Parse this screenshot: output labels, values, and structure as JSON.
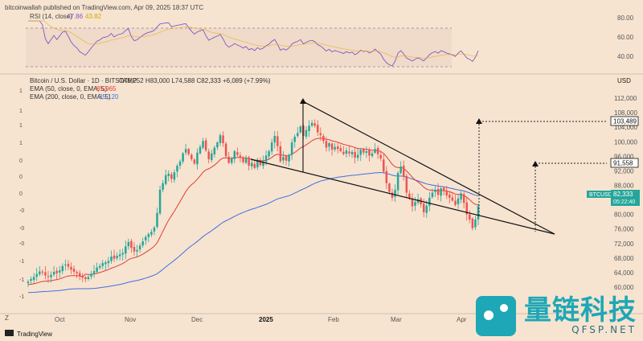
{
  "header": {
    "publisher": "bitcoinwallah published on TradingView.com, Apr 09, 2025 18:37 UTC"
  },
  "rsi_panel": {
    "legend_label": "RSI (14, close)",
    "legend_value1": "47.86",
    "legend_value2": "43.82",
    "y_ticks": [
      "80.00",
      "60.00",
      "40.00"
    ]
  },
  "price_panel": {
    "symbol_line": "Bitcoin / U.S. Dollar · 1D · BITSTAMP",
    "ohlc": "O76,252  H83,000  L74,588  C82,333  +6,089 (+7.99%)",
    "ema50_label": "EMA (50, close, 0, EMA, 5)",
    "ema50_value": "85,965",
    "ema200_label": "EMA (200, close, 0, EMA, 5)",
    "ema200_value": "85,120",
    "currency": "USD",
    "y_ticks": [
      "112,000",
      "108,000",
      "104,000",
      "100,000",
      "96,000",
      "92,000",
      "88,000",
      "84,000",
      "80,000",
      "76,000",
      "72,000",
      "68,000",
      "64,000",
      "60,000"
    ],
    "price_tags": {
      "target_high": "103,489",
      "target_low": "91,558"
    },
    "btc_tag": {
      "label": "BTCUSD",
      "price": "82,333",
      "countdown": "05:22:40"
    }
  },
  "x_axis": {
    "labels": [
      "Oct",
      "Nov",
      "Dec",
      "2025",
      "Feb",
      "Mar",
      "Apr"
    ]
  },
  "footer": {
    "brand": "TradingView"
  },
  "watermark": {
    "title": "量链科技",
    "url": "QFSP.NET"
  },
  "colors": {
    "bull": "#26a69a",
    "bear": "#ef5350",
    "ema50": "#e53935",
    "ema200": "#3f6fe0",
    "rsi": "#7e57c2",
    "bg": "#f6e4d0"
  },
  "chart_data": {
    "type": "candlestick",
    "title": "Bitcoin / U.S. Dollar · 1D · BITSTAMP",
    "ylabel": "USD",
    "ylim": [
      58000,
      114000
    ],
    "x": [
      "Oct",
      "Nov",
      "Dec",
      "2025",
      "Feb",
      "Mar",
      "Apr"
    ],
    "close_series": [
      61500,
      62200,
      62800,
      63600,
      64300,
      64000,
      63200,
      62800,
      63400,
      64200,
      63800,
      64600,
      65800,
      66200,
      65600,
      64800,
      64200,
      63800,
      63000,
      62600,
      62200,
      62800,
      63600,
      64400,
      65400,
      65800,
      66600,
      66800,
      67200,
      68400,
      67800,
      68600,
      69000,
      69400,
      71200,
      72400,
      70800,
      69800,
      70200,
      71400,
      72600,
      73800,
      74600,
      75200,
      76400,
      80400,
      86800,
      88600,
      90800,
      91200,
      89800,
      91600,
      93400,
      94600,
      96800,
      98000,
      96600,
      95200,
      94000,
      97000,
      98600,
      100200,
      97600,
      95200,
      96800,
      98400,
      99800,
      101800,
      99600,
      96000,
      94200,
      95400,
      97400,
      96400,
      95600,
      94400,
      95600,
      93400,
      94200,
      92800,
      94800,
      93600,
      94600,
      96200,
      97400,
      99800,
      101600,
      98800,
      94600,
      95800,
      94800,
      96400,
      99800,
      101400,
      102400,
      104200,
      101600,
      103200,
      104400,
      105200,
      104400,
      102600,
      101800,
      100200,
      98400,
      99600,
      97800,
      98600,
      98000,
      97400,
      96600,
      97600,
      96800,
      97200,
      95600,
      96400,
      97800,
      97000,
      97400,
      96200,
      96800,
      98000,
      96600,
      95400,
      91800,
      88600,
      86200,
      84600,
      86800,
      91400,
      93200,
      90400,
      86000,
      84400,
      82200,
      83400,
      84200,
      82800,
      80600,
      82400,
      84600,
      86000,
      86800,
      85400,
      87200,
      86400,
      85200,
      84600,
      83800,
      82600,
      84400,
      85800,
      83200,
      80000,
      78600,
      76200,
      78600,
      82333
    ],
    "ema50_end": 85965,
    "ema200_end": 85120,
    "rsi": {
      "last": 47.86,
      "ma": 43.82,
      "ylim": [
        20,
        100
      ],
      "bands": [
        30,
        70
      ]
    },
    "annotations": {
      "falling_wedge": true,
      "targets": [
        103489,
        91558
      ]
    }
  }
}
